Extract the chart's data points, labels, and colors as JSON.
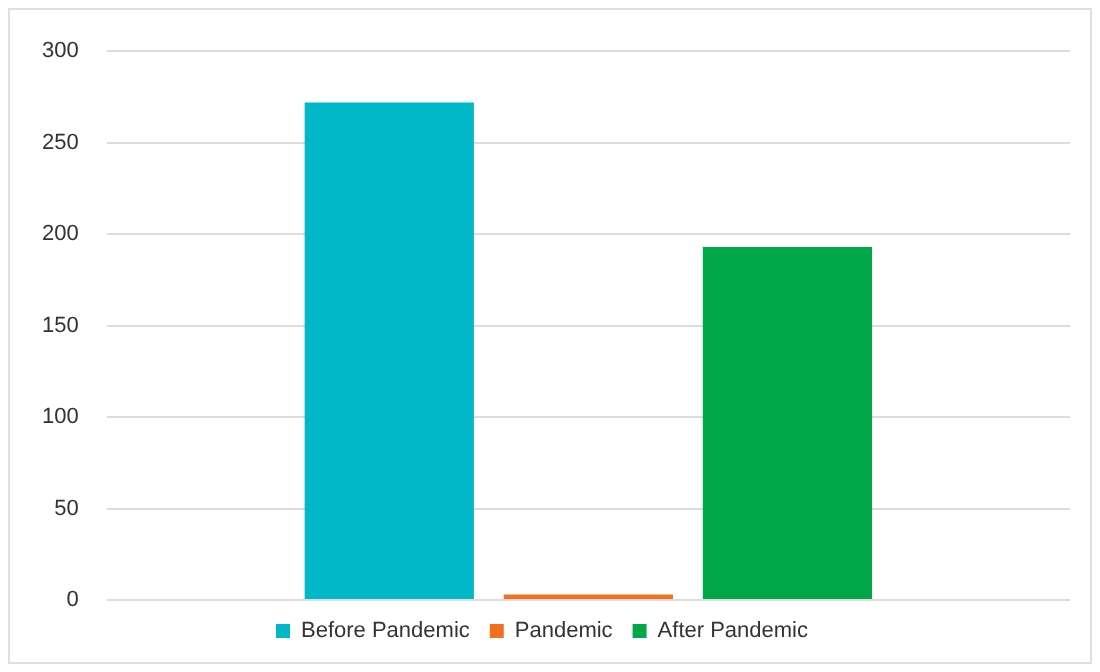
{
  "chart_data": {
    "type": "bar",
    "categories": [
      null
    ],
    "series": [
      {
        "name": "Before Pandemic",
        "color": "#00b8c8",
        "values": [
          272
        ]
      },
      {
        "name": "Pandemic",
        "color": "#f07020",
        "values": [
          3
        ]
      },
      {
        "name": "After Pandemic",
        "color": "#00a84a",
        "values": [
          193
        ]
      }
    ],
    "ylim": [
      0,
      300
    ],
    "yticks": [
      0,
      50,
      100,
      150,
      200,
      250,
      300
    ],
    "grid": "y",
    "legend": "bottom"
  }
}
